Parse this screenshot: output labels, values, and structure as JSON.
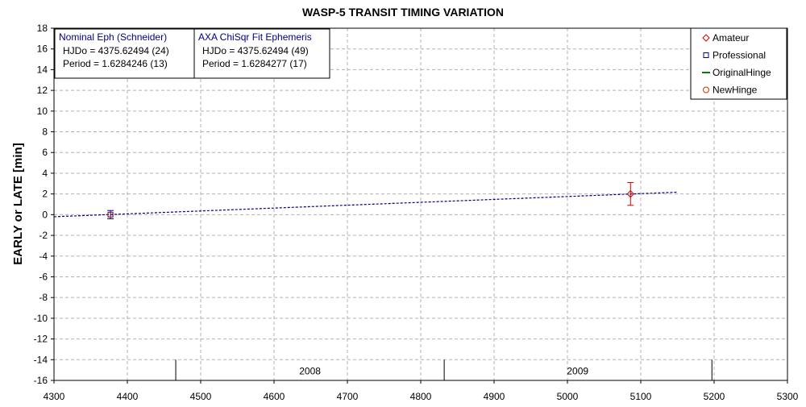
{
  "chart_data": {
    "type": "scatter",
    "title": "WASP-5 TRANSIT TIMING VARIATION",
    "xlabel": "",
    "ylabel": "EARLY or LATE [min]",
    "xlim": [
      4300,
      5300
    ],
    "ylim": [
      -16,
      18
    ],
    "x_ticks": [
      4300,
      4400,
      4500,
      4600,
      4700,
      4800,
      4900,
      5000,
      5100,
      5200,
      5300
    ],
    "y_ticks": [
      18,
      16,
      14,
      12,
      10,
      8,
      6,
      4,
      2,
      0,
      -2,
      -4,
      -6,
      -8,
      -10,
      -12,
      -14,
      -16
    ],
    "grid": true,
    "legend_position": "top-right",
    "series": [
      {
        "name": "Amateur",
        "marker": "diamond",
        "color": "#cc0000",
        "points": [
          {
            "x": 5086,
            "y": 2.0,
            "err": 1.1
          }
        ]
      },
      {
        "name": "Professional",
        "marker": "square",
        "color": "#000099",
        "points": [
          {
            "x": 4377,
            "y": 0.0,
            "err": 0.4
          }
        ]
      },
      {
        "name": "OriginalHinge",
        "marker": "line",
        "color": "#008000",
        "points": []
      },
      {
        "name": "NewHinge",
        "marker": "circle",
        "color": "#cc3300",
        "points": [
          {
            "x": 4377,
            "y": 0.0
          }
        ]
      }
    ],
    "fit_line": {
      "color": "#000080",
      "x": [
        4300,
        5150
      ],
      "y": [
        -0.2,
        2.17
      ]
    },
    "year_markers": [
      {
        "x": 4466,
        "label": ""
      },
      {
        "x": 4832,
        "label": "2008",
        "label_x": 4649
      },
      {
        "x": 5197,
        "label": "2009",
        "label_x": 5014
      }
    ],
    "info_boxes": [
      {
        "title": "Nominal Eph (Schneider)",
        "lines": [
          "HJDo = 4375.62494 (24)",
          "Period = 1.6284246 (13)"
        ]
      },
      {
        "title": "AXA ChiSqr Fit Ephemeris",
        "lines": [
          "HJDo = 4375.62494 (49)",
          "Period = 1.6284277 (17)"
        ]
      }
    ]
  }
}
